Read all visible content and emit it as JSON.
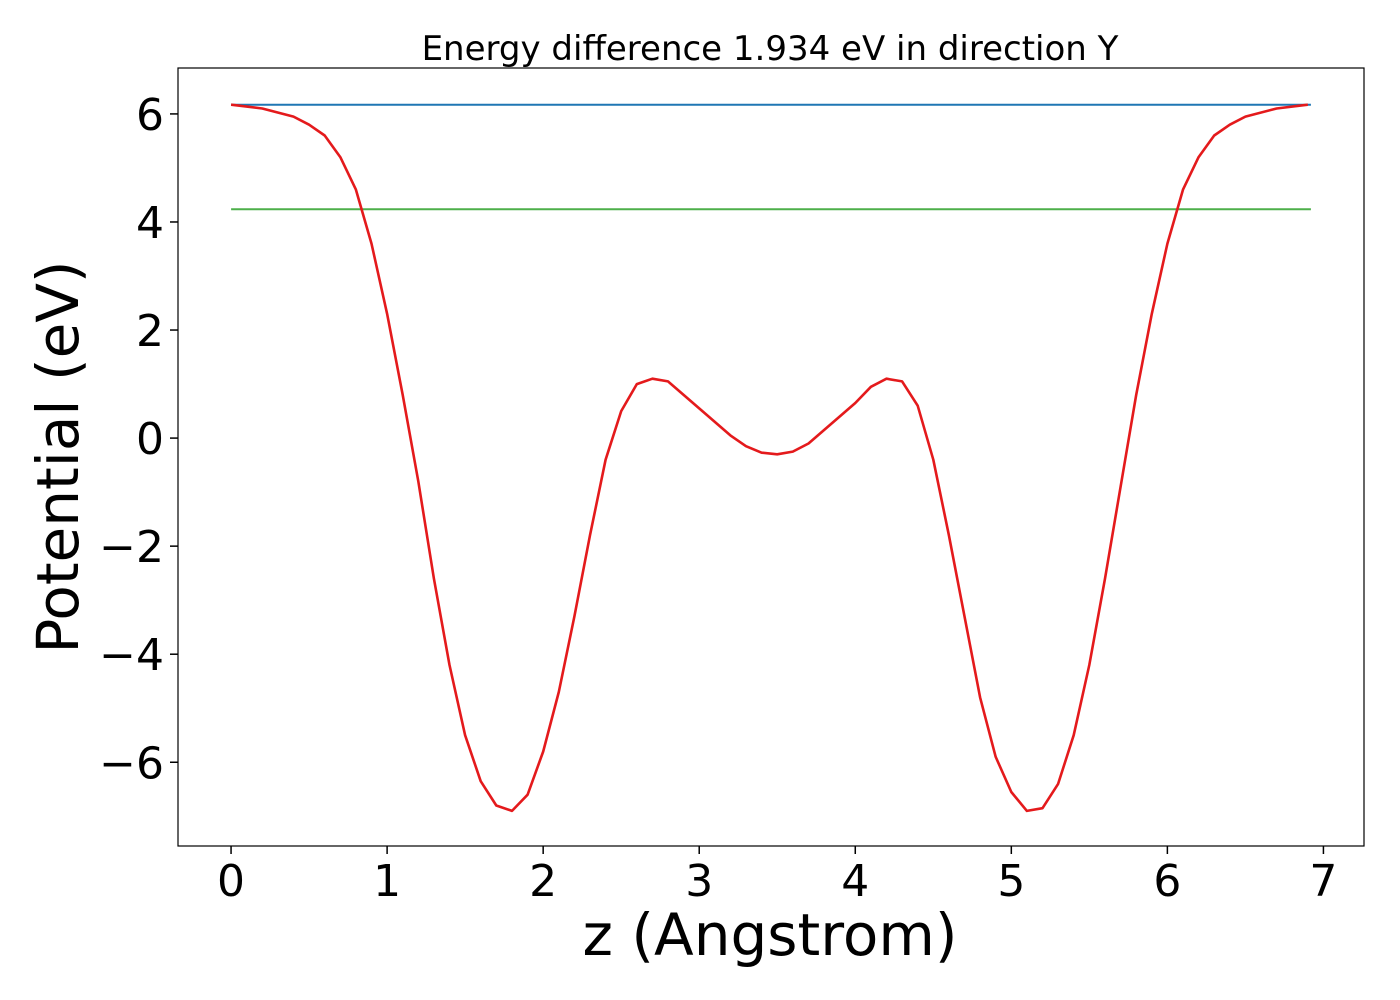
{
  "chart_data": {
    "type": "line",
    "title": "Energy difference 1.934 eV in direction Y",
    "xlabel": "z (Angstrom)",
    "ylabel": "Potential (eV)",
    "xlim": [
      -0.34,
      7.26
    ],
    "ylim": [
      -7.55,
      6.85
    ],
    "xticks": [
      0,
      1,
      2,
      3,
      4,
      5,
      6,
      7
    ],
    "xtick_labels": [
      "0",
      "1",
      "2",
      "3",
      "4",
      "5",
      "6",
      "7"
    ],
    "yticks": [
      6,
      4,
      2,
      0,
      -2,
      -4,
      -6
    ],
    "ytick_labels": [
      "6",
      "4",
      "2",
      "0",
      "−2",
      "−4",
      "−6"
    ],
    "grid": false,
    "legend": "none",
    "series": [
      {
        "color": "#e41a1c",
        "x": [
          0.0,
          0.2,
          0.4,
          0.5,
          0.6,
          0.7,
          0.8,
          0.9,
          1.0,
          1.1,
          1.2,
          1.3,
          1.4,
          1.5,
          1.6,
          1.7,
          1.8,
          1.9,
          2.0,
          2.1,
          2.2,
          2.3,
          2.4,
          2.5,
          2.6,
          2.7,
          2.8,
          2.9,
          3.0,
          3.1,
          3.2,
          3.3,
          3.4,
          3.5,
          3.6,
          3.7,
          3.8,
          3.9,
          4.0,
          4.1,
          4.2,
          4.3,
          4.4,
          4.5,
          4.6,
          4.7,
          4.8,
          4.9,
          5.0,
          5.1,
          5.2,
          5.3,
          5.4,
          5.5,
          5.6,
          5.7,
          5.8,
          5.9,
          6.0,
          6.1,
          6.2,
          6.3,
          6.4,
          6.5,
          6.7,
          6.9
        ],
        "y": [
          6.17,
          6.1,
          5.95,
          5.8,
          5.6,
          5.2,
          4.6,
          3.6,
          2.3,
          0.8,
          -0.8,
          -2.6,
          -4.2,
          -5.5,
          -6.35,
          -6.8,
          -6.9,
          -6.6,
          -5.8,
          -4.7,
          -3.3,
          -1.8,
          -0.4,
          0.5,
          1.0,
          1.1,
          1.05,
          0.8,
          0.55,
          0.3,
          0.05,
          -0.15,
          -0.27,
          -0.3,
          -0.25,
          -0.1,
          0.15,
          0.4,
          0.65,
          0.95,
          1.1,
          1.05,
          0.6,
          -0.4,
          -1.8,
          -3.3,
          -4.8,
          -5.9,
          -6.55,
          -6.9,
          -6.85,
          -6.4,
          -5.5,
          -4.2,
          -2.6,
          -0.9,
          0.8,
          2.3,
          3.6,
          4.6,
          5.2,
          5.6,
          5.8,
          5.95,
          6.1,
          6.17
        ]
      },
      {
        "color": "#1f77b4",
        "x": [
          0.0,
          6.92
        ],
        "y": [
          6.17,
          6.17
        ]
      },
      {
        "color": "#4daf4a",
        "x": [
          0.0,
          6.92
        ],
        "y": [
          4.236,
          4.236
        ]
      }
    ]
  }
}
